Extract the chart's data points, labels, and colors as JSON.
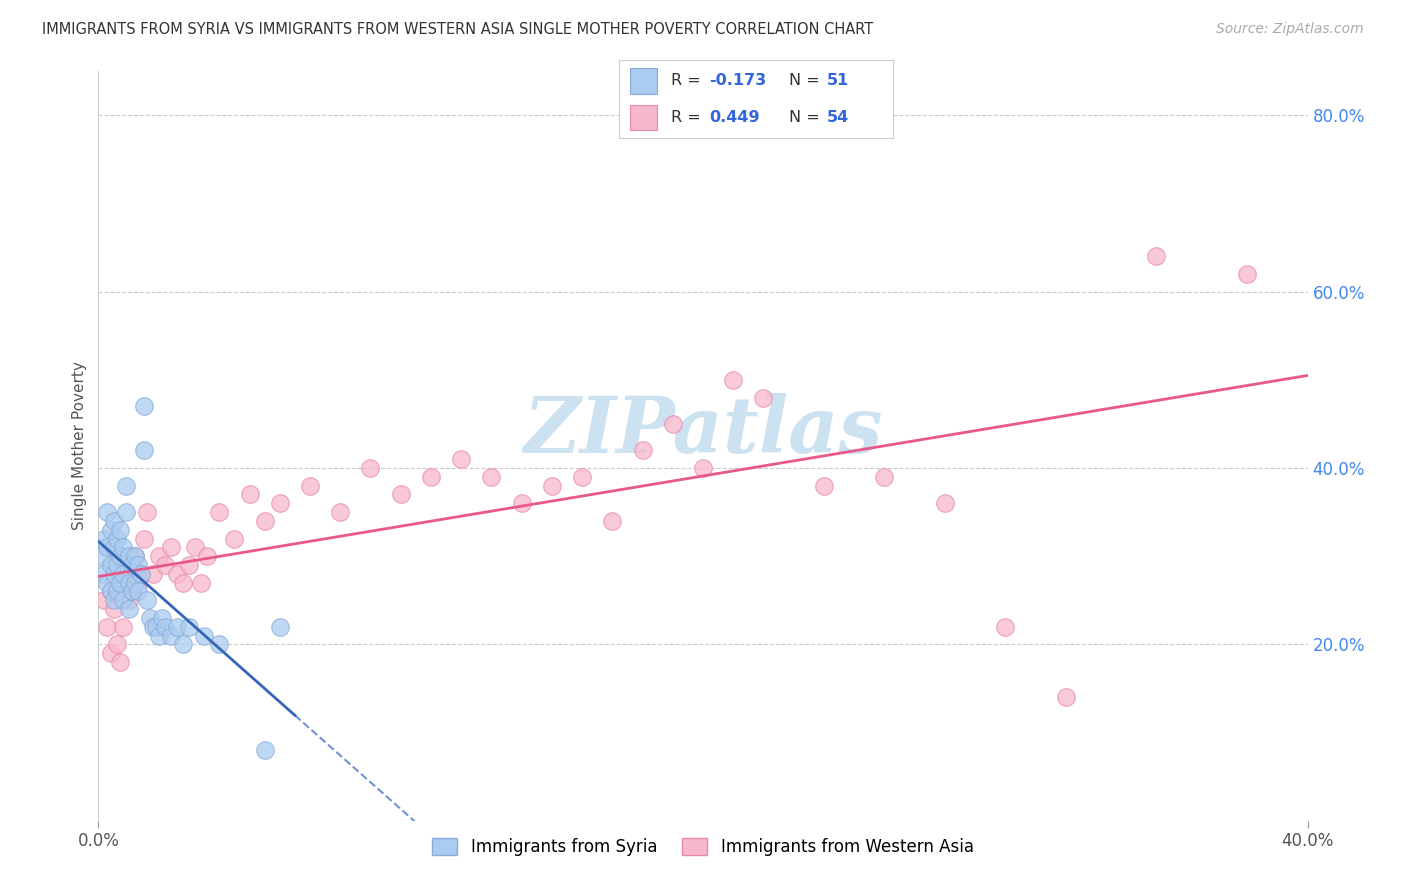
{
  "title": "IMMIGRANTS FROM SYRIA VS IMMIGRANTS FROM WESTERN ASIA SINGLE MOTHER POVERTY CORRELATION CHART",
  "source": "Source: ZipAtlas.com",
  "ylabel": "Single Mother Poverty",
  "xlim": [
    0,
    0.4
  ],
  "ylim": [
    0,
    0.85
  ],
  "yticks_right": [
    0.2,
    0.4,
    0.6,
    0.8
  ],
  "ytick_labels_right": [
    "20.0%",
    "40.0%",
    "60.0%",
    "80.0%"
  ],
  "xtick_positions": [
    0.0,
    0.4
  ],
  "xtick_labels": [
    "0.0%",
    "40.0%"
  ],
  "series1_label": "Immigrants from Syria",
  "series1_color": "#aaccf0",
  "series1_edge_color": "#88aad8",
  "series1_R": -0.173,
  "series1_N": 51,
  "series1_line_color": "#3366bb",
  "series2_label": "Immigrants from Western Asia",
  "series2_color": "#f8b8cc",
  "series2_edge_color": "#e888aa",
  "series2_R": 0.449,
  "series2_N": 54,
  "series2_line_color": "#e85888",
  "watermark_text": "ZIPatlas",
  "watermark_color": "#c8dff0",
  "background_color": "#ffffff",
  "grid_color": "#cccccc",
  "syria_x": [
    0.001,
    0.002,
    0.002,
    0.003,
    0.003,
    0.003,
    0.004,
    0.004,
    0.004,
    0.005,
    0.005,
    0.005,
    0.005,
    0.006,
    0.006,
    0.006,
    0.007,
    0.007,
    0.007,
    0.008,
    0.008,
    0.008,
    0.009,
    0.009,
    0.01,
    0.01,
    0.01,
    0.011,
    0.011,
    0.012,
    0.012,
    0.013,
    0.013,
    0.014,
    0.015,
    0.015,
    0.016,
    0.017,
    0.018,
    0.019,
    0.02,
    0.021,
    0.022,
    0.024,
    0.026,
    0.028,
    0.03,
    0.035,
    0.04,
    0.055,
    0.06
  ],
  "syria_y": [
    0.3,
    0.32,
    0.28,
    0.35,
    0.31,
    0.27,
    0.33,
    0.29,
    0.26,
    0.34,
    0.31,
    0.28,
    0.25,
    0.32,
    0.29,
    0.26,
    0.33,
    0.3,
    0.27,
    0.31,
    0.28,
    0.25,
    0.38,
    0.35,
    0.3,
    0.27,
    0.24,
    0.29,
    0.26,
    0.3,
    0.27,
    0.29,
    0.26,
    0.28,
    0.42,
    0.47,
    0.25,
    0.23,
    0.22,
    0.22,
    0.21,
    0.23,
    0.22,
    0.21,
    0.22,
    0.2,
    0.22,
    0.21,
    0.2,
    0.08,
    0.22
  ],
  "western_x": [
    0.002,
    0.003,
    0.004,
    0.004,
    0.005,
    0.006,
    0.007,
    0.008,
    0.009,
    0.01,
    0.011,
    0.012,
    0.013,
    0.014,
    0.015,
    0.016,
    0.018,
    0.02,
    0.022,
    0.024,
    0.026,
    0.028,
    0.03,
    0.032,
    0.034,
    0.036,
    0.04,
    0.045,
    0.05,
    0.055,
    0.06,
    0.07,
    0.08,
    0.09,
    0.1,
    0.11,
    0.12,
    0.13,
    0.14,
    0.15,
    0.16,
    0.17,
    0.18,
    0.19,
    0.2,
    0.21,
    0.22,
    0.24,
    0.26,
    0.28,
    0.3,
    0.32,
    0.35,
    0.38
  ],
  "western_y": [
    0.25,
    0.22,
    0.26,
    0.19,
    0.24,
    0.2,
    0.18,
    0.22,
    0.28,
    0.25,
    0.26,
    0.3,
    0.27,
    0.28,
    0.32,
    0.35,
    0.28,
    0.3,
    0.29,
    0.31,
    0.28,
    0.27,
    0.29,
    0.31,
    0.27,
    0.3,
    0.35,
    0.32,
    0.37,
    0.34,
    0.36,
    0.38,
    0.35,
    0.4,
    0.37,
    0.39,
    0.41,
    0.39,
    0.36,
    0.38,
    0.39,
    0.34,
    0.42,
    0.45,
    0.4,
    0.5,
    0.48,
    0.38,
    0.39,
    0.36,
    0.22,
    0.14,
    0.64,
    0.62
  ]
}
